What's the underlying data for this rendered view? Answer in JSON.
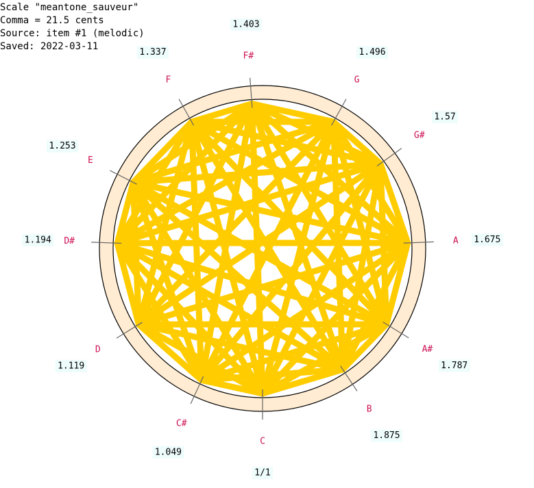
{
  "header": {
    "lines": [
      "Scale \"meantone_sauveur\"",
      "Comma = 21.5 cents",
      "Source: item #1 (melodic)",
      "Saved: 2022-03-11"
    ]
  },
  "nodes": [
    {
      "label": "C",
      "ratio": "1/1"
    },
    {
      "label": "C#",
      "ratio": "1.049"
    },
    {
      "label": "D",
      "ratio": "1.119"
    },
    {
      "label": "D#",
      "ratio": "1.194"
    },
    {
      "label": "E",
      "ratio": "1.253"
    },
    {
      "label": "F",
      "ratio": "1.337"
    },
    {
      "label": "F#",
      "ratio": "1.403"
    },
    {
      "label": "G",
      "ratio": "1.496"
    },
    {
      "label": "G#",
      "ratio": "1.57"
    },
    {
      "label": "A",
      "ratio": "1.675"
    },
    {
      "label": "A#",
      "ratio": "1.787"
    },
    {
      "label": "B",
      "ratio": "1.875"
    }
  ]
}
